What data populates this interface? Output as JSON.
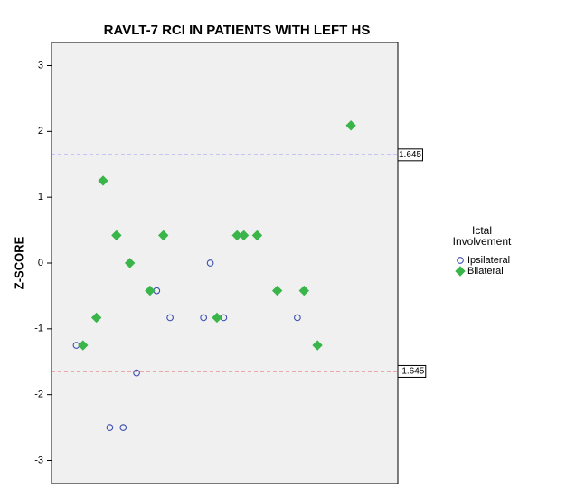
{
  "chart_data": {
    "type": "scatter",
    "title": "RAVLT-7 RCI IN PATIENTS WITH LEFT HS",
    "y_label": "Z-SCORE",
    "legend_title": [
      "Ictal",
      "Involvement"
    ],
    "xlim": [
      -2.7,
      49
    ],
    "ylim": [
      -3.35,
      3.35
    ],
    "yticks": [
      -3,
      -2,
      -1,
      0,
      1,
      2,
      3
    ],
    "grid": false,
    "legend": "right",
    "reference_lines": [
      {
        "value": 1.645,
        "color": "#7b7bff"
      },
      {
        "value": -1.645,
        "color": "#e03030"
      }
    ],
    "series": [
      {
        "name": "Ipsilateral",
        "color": "#3b4fb0",
        "marker": "circle",
        "x": [
          1,
          6,
          8,
          10,
          13,
          15,
          20,
          21,
          23,
          34
        ],
        "values": [
          -1.25,
          -2.5,
          -2.5,
          -1.67,
          -0.42,
          -0.83,
          -0.83,
          0,
          -0.83,
          -0.83
        ]
      },
      {
        "name": "Bilateral",
        "color": "#3ab54a",
        "marker": "diamond",
        "x": [
          2,
          4,
          5,
          7,
          9,
          12,
          14,
          22,
          25,
          26,
          28,
          31,
          35,
          37,
          42
        ],
        "values": [
          -1.25,
          -0.83,
          1.25,
          0.42,
          0,
          -0.42,
          0.42,
          -0.83,
          0.42,
          0.42,
          0.42,
          -0.42,
          -0.42,
          -1.25,
          2.09
        ]
      }
    ]
  }
}
